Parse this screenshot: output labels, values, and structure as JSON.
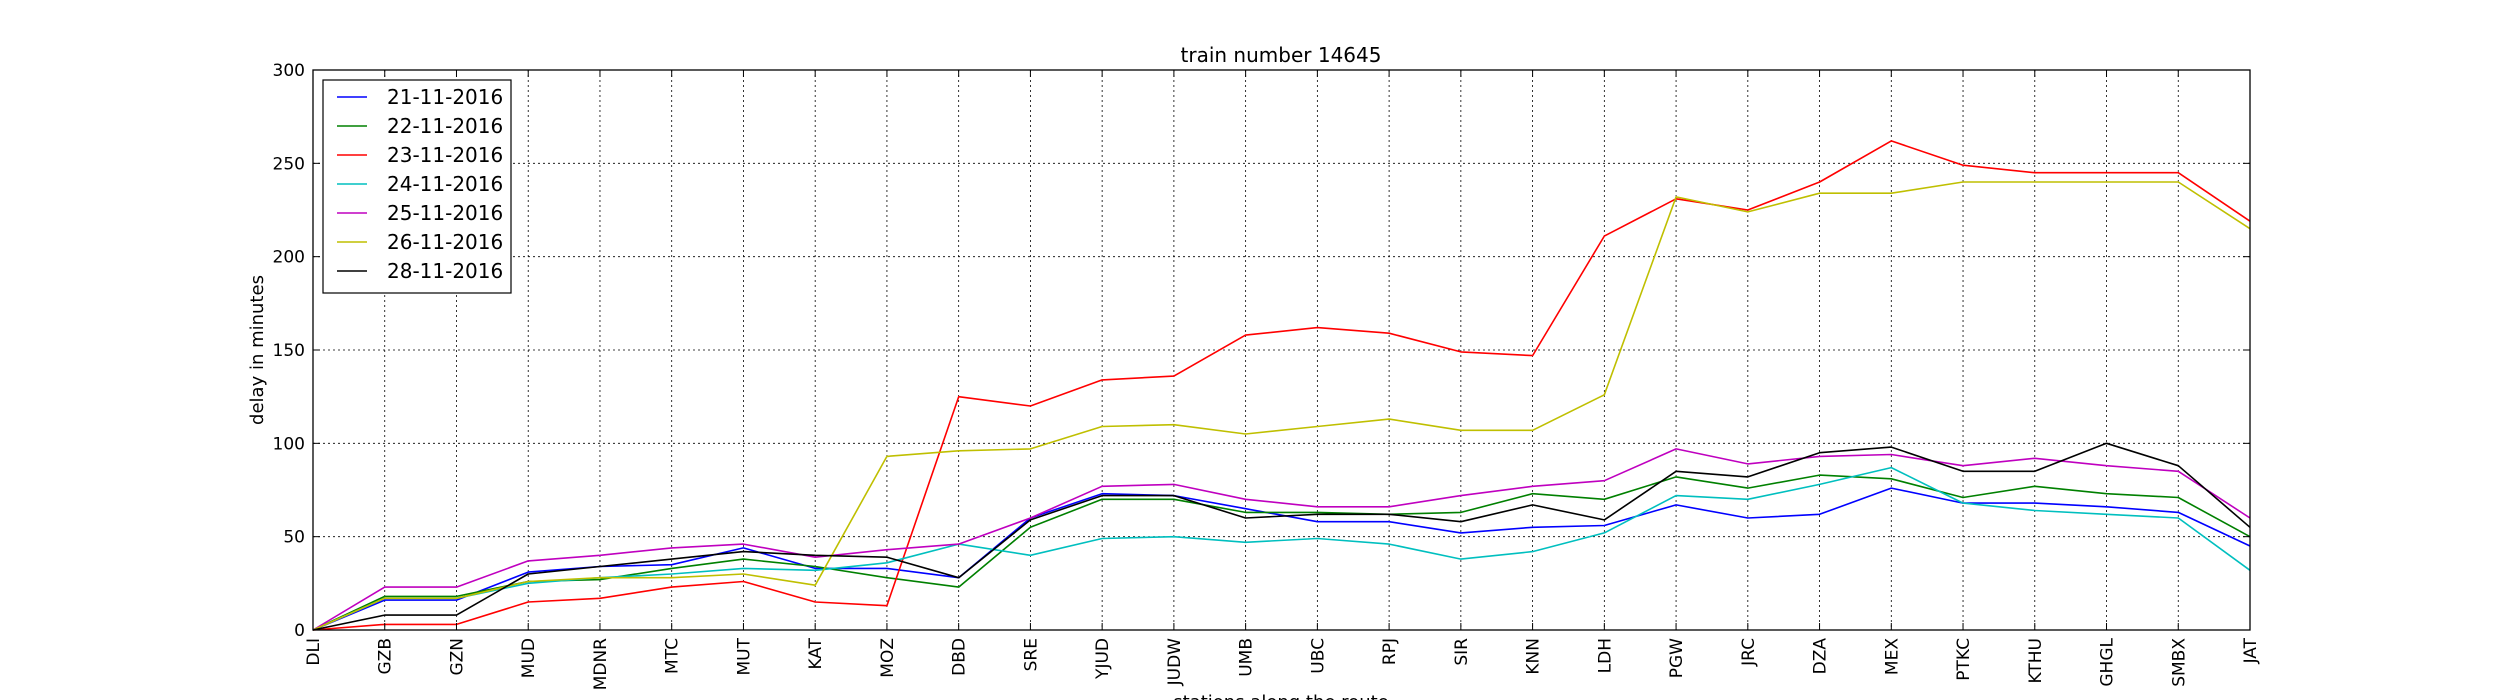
{
  "chart_data": {
    "type": "line",
    "title": "train number 14645",
    "xlabel": "stations along the route",
    "ylabel": "delay in minutes",
    "ylim": [
      0,
      300
    ],
    "yticks": [
      0,
      50,
      100,
      150,
      200,
      250,
      300
    ],
    "grid": true,
    "legend_position": "top-left",
    "categories": [
      "DLI",
      "GZB",
      "GZN",
      "MUD",
      "MDNR",
      "MTC",
      "MUT",
      "KAT",
      "MOZ",
      "DBD",
      "SRE",
      "YJUD",
      "JUDW",
      "UMB",
      "UBC",
      "RPJ",
      "SIR",
      "KNN",
      "LDH",
      "PGW",
      "JRC",
      "DZA",
      "MEX",
      "PTKC",
      "KTHU",
      "GHGL",
      "SMBX",
      "JAT"
    ],
    "series": [
      {
        "name": "21-11-2016",
        "color": "#0000ff",
        "values": [
          0,
          16,
          16,
          31,
          34,
          35,
          44,
          33,
          33,
          28,
          60,
          73,
          72,
          65,
          58,
          58,
          52,
          55,
          56,
          67,
          60,
          62,
          76,
          68,
          68,
          66,
          63,
          45
        ]
      },
      {
        "name": "22-11-2016",
        "color": "#008000",
        "values": [
          0,
          18,
          18,
          26,
          27,
          33,
          38,
          34,
          28,
          23,
          55,
          70,
          70,
          63,
          63,
          62,
          63,
          73,
          70,
          82,
          76,
          83,
          81,
          71,
          77,
          73,
          71,
          50
        ]
      },
      {
        "name": "23-11-2016",
        "color": "#ff0000",
        "values": [
          0,
          3,
          3,
          15,
          17,
          23,
          26,
          15,
          13,
          125,
          120,
          134,
          136,
          158,
          162,
          159,
          149,
          147,
          211,
          231,
          225,
          240,
          262,
          249,
          245,
          245,
          245,
          219
        ]
      },
      {
        "name": "24-11-2016",
        "color": "#00bfbf",
        "values": [
          0,
          17,
          17,
          25,
          28,
          30,
          33,
          32,
          36,
          46,
          40,
          49,
          50,
          47,
          49,
          46,
          38,
          42,
          52,
          72,
          70,
          78,
          87,
          68,
          64,
          62,
          60,
          32
        ]
      },
      {
        "name": "25-11-2016",
        "color": "#bf00bf",
        "values": [
          0,
          23,
          23,
          37,
          40,
          44,
          46,
          39,
          43,
          46,
          60,
          77,
          78,
          70,
          66,
          66,
          72,
          77,
          80,
          97,
          89,
          93,
          94,
          88,
          92,
          88,
          85,
          60
        ]
      },
      {
        "name": "26-11-2016",
        "color": "#bfbf00",
        "values": [
          0,
          17,
          17,
          26,
          28,
          28,
          30,
          24,
          93,
          96,
          97,
          109,
          110,
          105,
          109,
          113,
          107,
          107,
          126,
          232,
          224,
          234,
          234,
          240,
          240,
          240,
          240,
          215
        ]
      },
      {
        "name": "28-11-2016",
        "color": "#000000",
        "values": [
          0,
          8,
          8,
          30,
          34,
          38,
          42,
          40,
          39,
          28,
          59,
          72,
          72,
          60,
          62,
          62,
          58,
          67,
          59,
          85,
          82,
          95,
          98,
          85,
          85,
          100,
          88,
          55
        ]
      }
    ]
  }
}
